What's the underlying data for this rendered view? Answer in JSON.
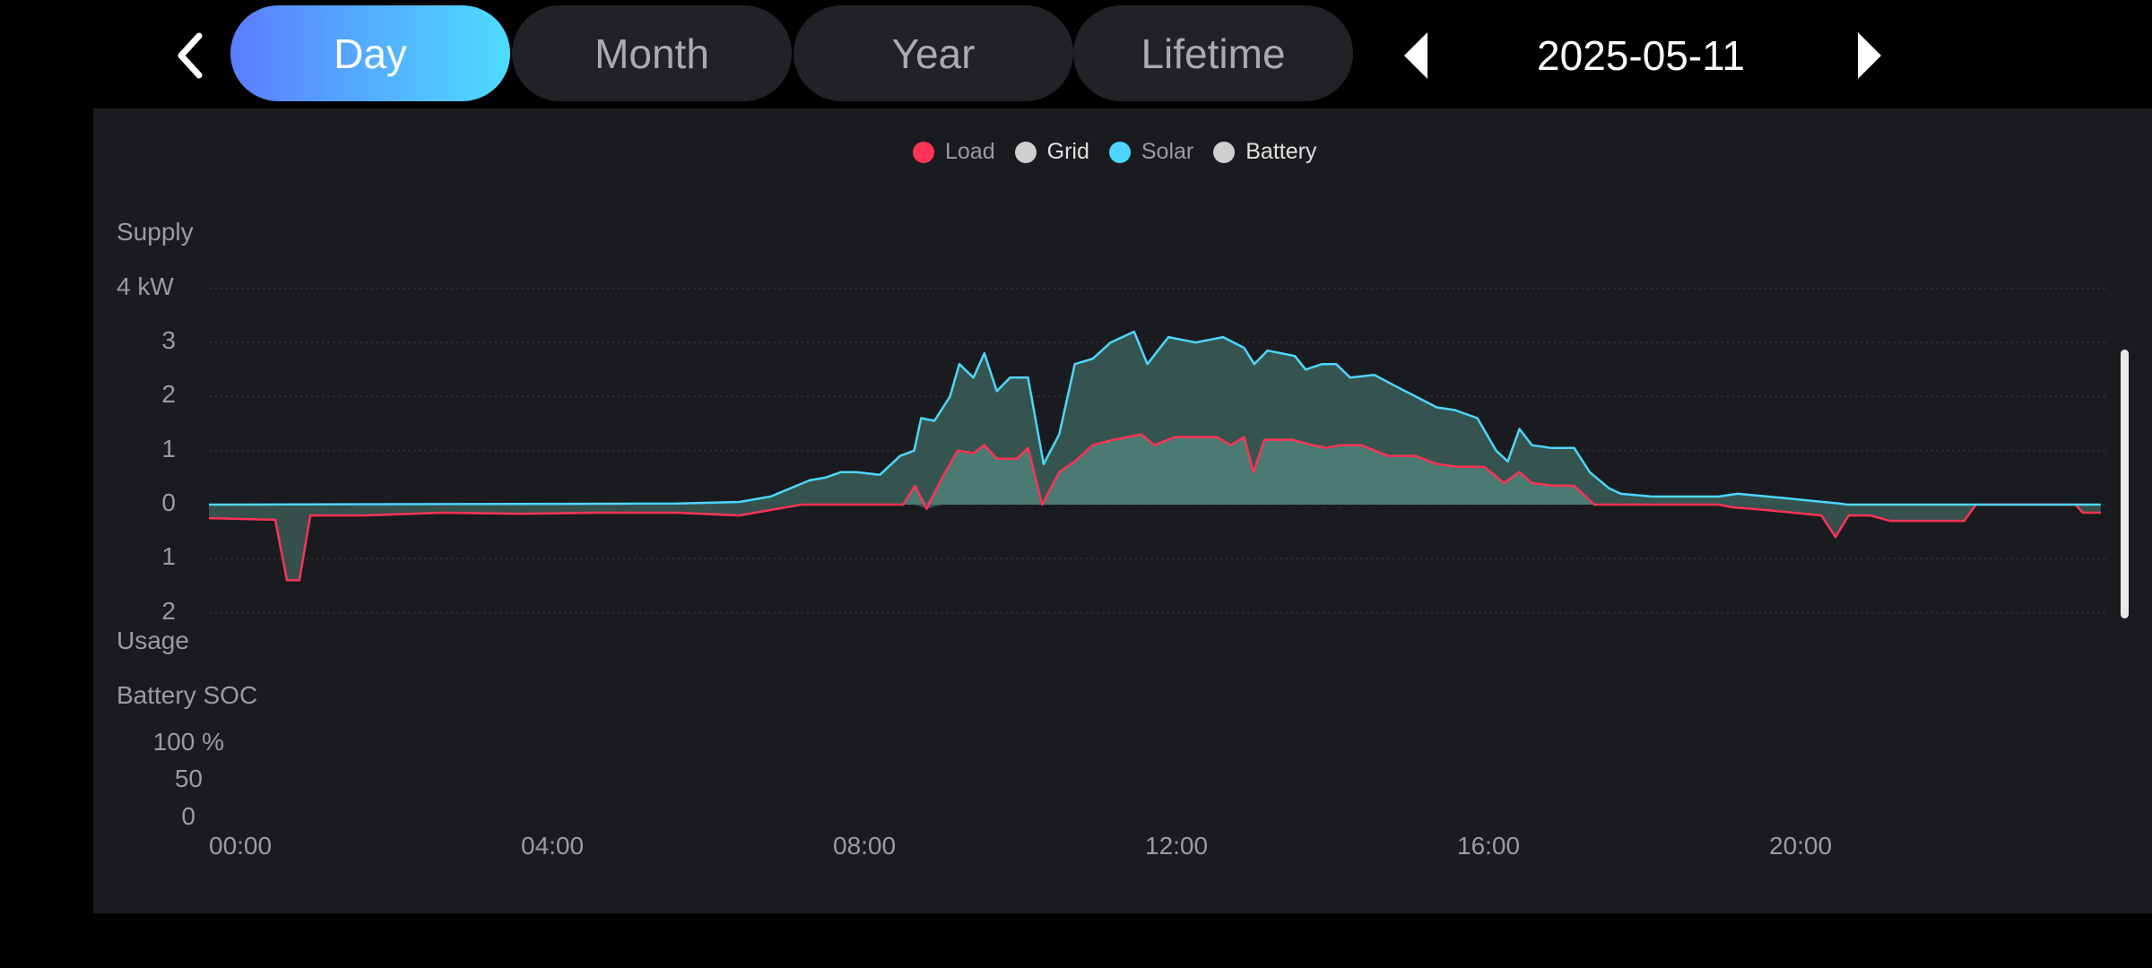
{
  "nav": {
    "back_icon": "chevron-left-icon",
    "tabs": [
      {
        "label": "Day",
        "active": true
      },
      {
        "label": "Month",
        "active": false
      },
      {
        "label": "Year",
        "active": false
      },
      {
        "label": "Lifetime",
        "active": false
      }
    ],
    "prev_icon": "triangle-left-icon",
    "next_icon": "triangle-right-icon",
    "date": "2025-05-11"
  },
  "chart_data": {
    "type": "area",
    "legend": [
      {
        "name": "Load",
        "color": "#ff3355"
      },
      {
        "name": "Grid",
        "color": "#cfcfcf"
      },
      {
        "name": "Solar",
        "color": "#4dd6ff"
      },
      {
        "name": "Battery",
        "color": "#cfcfcf"
      }
    ],
    "legend_position": "top-center",
    "supply_label": "Supply",
    "usage_label": "Usage",
    "y_ticks": [
      {
        "value": 4,
        "label": "4 kW"
      },
      {
        "value": 3,
        "label": "3"
      },
      {
        "value": 2,
        "label": "2"
      },
      {
        "value": 1,
        "label": "1"
      },
      {
        "value": 0,
        "label": "0"
      },
      {
        "value": -1,
        "label": "1"
      },
      {
        "value": -2,
        "label": "2"
      }
    ],
    "ylim": [
      -2,
      4
    ],
    "x_unit": "hour",
    "xlim": [
      0,
      24
    ],
    "x_ticks": [
      {
        "value": 0,
        "label": "00:00"
      },
      {
        "value": 4,
        "label": "04:00"
      },
      {
        "value": 8,
        "label": "08:00"
      },
      {
        "value": 12,
        "label": "12:00"
      },
      {
        "value": 16,
        "label": "16:00"
      },
      {
        "value": 20,
        "label": "20:00"
      }
    ],
    "grid": true,
    "series": [
      {
        "name": "Solar",
        "color": "#4dd6ff",
        "points": [
          [
            0,
            0
          ],
          [
            6,
            0.02
          ],
          [
            6.8,
            0.05
          ],
          [
            7.2,
            0.15
          ],
          [
            7.7,
            0.45
          ],
          [
            7.9,
            0.5
          ],
          [
            8.1,
            0.6
          ],
          [
            8.3,
            0.6
          ],
          [
            8.6,
            0.55
          ],
          [
            8.86,
            0.9
          ],
          [
            9.04,
            1.0
          ],
          [
            9.13,
            1.6
          ],
          [
            9.3,
            1.55
          ],
          [
            9.5,
            2.0
          ],
          [
            9.62,
            2.6
          ],
          [
            9.8,
            2.35
          ],
          [
            9.94,
            2.8
          ],
          [
            10.1,
            2.1
          ],
          [
            10.27,
            2.35
          ],
          [
            10.5,
            2.35
          ],
          [
            10.7,
            0.75
          ],
          [
            10.9,
            1.3
          ],
          [
            11.1,
            2.6
          ],
          [
            11.33,
            2.7
          ],
          [
            11.56,
            3.0
          ],
          [
            11.86,
            3.2
          ],
          [
            12.03,
            2.6
          ],
          [
            12.3,
            3.1
          ],
          [
            12.65,
            3.0
          ],
          [
            13.0,
            3.1
          ],
          [
            13.27,
            2.9
          ],
          [
            13.4,
            2.6
          ],
          [
            13.57,
            2.85
          ],
          [
            13.92,
            2.75
          ],
          [
            14.06,
            2.5
          ],
          [
            14.27,
            2.6
          ],
          [
            14.45,
            2.6
          ],
          [
            14.63,
            2.35
          ],
          [
            14.94,
            2.4
          ],
          [
            15.2,
            2.2
          ],
          [
            15.47,
            2.0
          ],
          [
            15.74,
            1.8
          ],
          [
            15.97,
            1.75
          ],
          [
            16.26,
            1.6
          ],
          [
            16.5,
            1.0
          ],
          [
            16.65,
            0.8
          ],
          [
            16.8,
            1.4
          ],
          [
            16.96,
            1.1
          ],
          [
            17.2,
            1.05
          ],
          [
            17.5,
            1.05
          ],
          [
            17.7,
            0.6
          ],
          [
            17.95,
            0.3
          ],
          [
            18.1,
            0.2
          ],
          [
            18.5,
            0.15
          ],
          [
            19.35,
            0.15
          ],
          [
            19.6,
            0.2
          ],
          [
            20.2,
            0.12
          ],
          [
            20.9,
            0.02
          ],
          [
            21.0,
            0
          ],
          [
            24.25,
            0
          ]
        ]
      },
      {
        "name": "Load",
        "color": "#ff3355",
        "points": [
          [
            0,
            -0.25
          ],
          [
            0.85,
            -0.28
          ],
          [
            1.0,
            -1.4
          ],
          [
            1.16,
            -1.4
          ],
          [
            1.3,
            -0.2
          ],
          [
            2,
            -0.2
          ],
          [
            3,
            -0.15
          ],
          [
            4,
            -0.17
          ],
          [
            5,
            -0.15
          ],
          [
            6,
            -0.15
          ],
          [
            6.8,
            -0.2
          ],
          [
            7.2,
            -0.1
          ],
          [
            7.6,
            0
          ],
          [
            8.9,
            0
          ],
          [
            9.05,
            0.35
          ],
          [
            9.2,
            -0.08
          ],
          [
            9.4,
            0.5
          ],
          [
            9.6,
            1.0
          ],
          [
            9.8,
            0.95
          ],
          [
            9.94,
            1.1
          ],
          [
            10.1,
            0.85
          ],
          [
            10.36,
            0.85
          ],
          [
            10.5,
            1.05
          ],
          [
            10.68,
            0
          ],
          [
            10.9,
            0.6
          ],
          [
            11.1,
            0.8
          ],
          [
            11.33,
            1.1
          ],
          [
            11.6,
            1.2
          ],
          [
            11.95,
            1.3
          ],
          [
            12.12,
            1.1
          ],
          [
            12.38,
            1.25
          ],
          [
            12.65,
            1.25
          ],
          [
            12.92,
            1.25
          ],
          [
            13.1,
            1.1
          ],
          [
            13.27,
            1.25
          ],
          [
            13.39,
            0.6
          ],
          [
            13.53,
            1.2
          ],
          [
            13.88,
            1.2
          ],
          [
            14.15,
            1.1
          ],
          [
            14.32,
            1.05
          ],
          [
            14.5,
            1.1
          ],
          [
            14.77,
            1.1
          ],
          [
            15.12,
            0.9
          ],
          [
            15.47,
            0.9
          ],
          [
            15.74,
            0.75
          ],
          [
            16.0,
            0.7
          ],
          [
            16.35,
            0.7
          ],
          [
            16.6,
            0.4
          ],
          [
            16.8,
            0.6
          ],
          [
            16.96,
            0.4
          ],
          [
            17.23,
            0.35
          ],
          [
            17.5,
            0.35
          ],
          [
            17.76,
            0
          ],
          [
            19.35,
            0
          ],
          [
            19.53,
            -0.05
          ],
          [
            19.96,
            -0.1
          ],
          [
            20.67,
            -0.2
          ],
          [
            20.85,
            -0.6
          ],
          [
            21.02,
            -0.2
          ],
          [
            21.29,
            -0.2
          ],
          [
            21.55,
            -0.3
          ],
          [
            22.5,
            -0.3
          ],
          [
            22.65,
            0
          ],
          [
            23.93,
            0
          ],
          [
            24.02,
            -0.15
          ],
          [
            24.25,
            -0.15
          ]
        ]
      }
    ],
    "soc": {
      "title": "Battery SOC",
      "y_ticks": [
        {
          "value": 100,
          "label": "100 %"
        },
        {
          "value": 50,
          "label": "50"
        },
        {
          "value": 0,
          "label": "0"
        }
      ]
    }
  }
}
